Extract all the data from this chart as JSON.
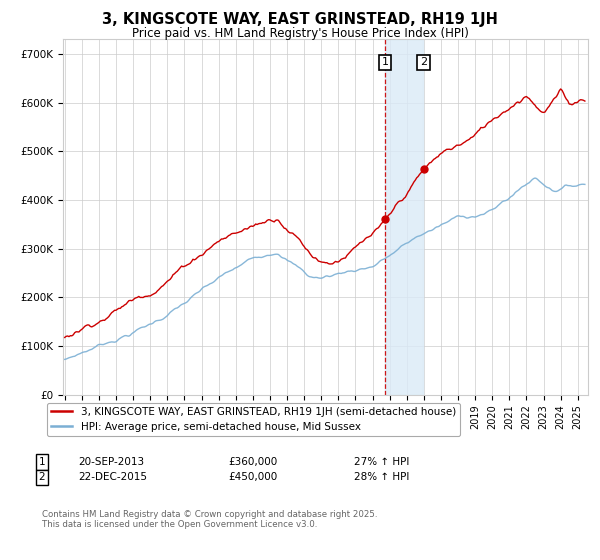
{
  "title": "3, KINGSCOTE WAY, EAST GRINSTEAD, RH19 1JH",
  "subtitle": "Price paid vs. HM Land Registry's House Price Index (HPI)",
  "ylabel_ticks": [
    "£0",
    "£100K",
    "£200K",
    "£300K",
    "£400K",
    "£500K",
    "£600K",
    "£700K"
  ],
  "ytick_values": [
    0,
    100000,
    200000,
    300000,
    400000,
    500000,
    600000,
    700000
  ],
  "ylim": [
    0,
    730000
  ],
  "xlim_start": 1994.9,
  "xlim_end": 2025.6,
  "legend_line1": "3, KINGSCOTE WAY, EAST GRINSTEAD, RH19 1JH (semi-detached house)",
  "legend_line2": "HPI: Average price, semi-detached house, Mid Sussex",
  "marker1_date": "20-SEP-2013",
  "marker1_price": "£360,000",
  "marker1_hpi": "27% ↑ HPI",
  "marker1_year": 2013.72,
  "marker2_date": "22-DEC-2015",
  "marker2_price": "£450,000",
  "marker2_hpi": "28% ↑ HPI",
  "marker2_year": 2015.97,
  "footer": "Contains HM Land Registry data © Crown copyright and database right 2025.\nThis data is licensed under the Open Government Licence v3.0.",
  "red_color": "#cc0000",
  "blue_color": "#7bafd4",
  "bg_color": "#ffffff",
  "grid_color": "#cccccc",
  "shade_color": "#daeaf7"
}
